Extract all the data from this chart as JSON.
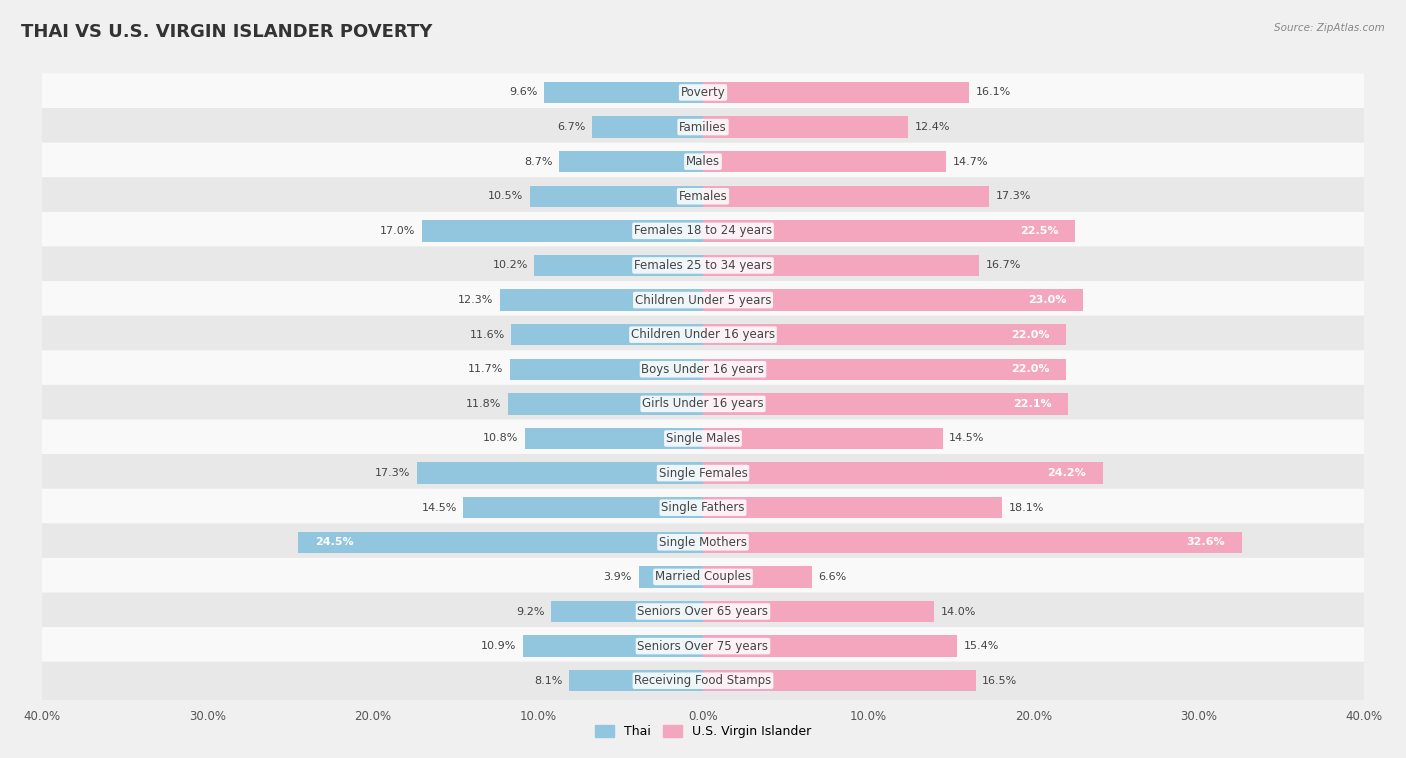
{
  "title": "Thai vs U.S. Virgin Islander Poverty",
  "source": "Source: ZipAtlas.com",
  "categories": [
    "Poverty",
    "Families",
    "Males",
    "Females",
    "Females 18 to 24 years",
    "Females 25 to 34 years",
    "Children Under 5 years",
    "Children Under 16 years",
    "Boys Under 16 years",
    "Girls Under 16 years",
    "Single Males",
    "Single Females",
    "Single Fathers",
    "Single Mothers",
    "Married Couples",
    "Seniors Over 65 years",
    "Seniors Over 75 years",
    "Receiving Food Stamps"
  ],
  "thai_values": [
    9.6,
    6.7,
    8.7,
    10.5,
    17.0,
    10.2,
    12.3,
    11.6,
    11.7,
    11.8,
    10.8,
    17.3,
    14.5,
    24.5,
    3.9,
    9.2,
    10.9,
    8.1
  ],
  "usvi_values": [
    16.1,
    12.4,
    14.7,
    17.3,
    22.5,
    16.7,
    23.0,
    22.0,
    22.0,
    22.1,
    14.5,
    24.2,
    18.1,
    32.6,
    6.6,
    14.0,
    15.4,
    16.5
  ],
  "thai_color": "#92c5de",
  "usvi_color": "#f4a6bf",
  "thai_label": "Thai",
  "usvi_label": "U.S. Virgin Islander",
  "xlim": 40.0,
  "bar_height": 0.62,
  "bg_color": "#f0f0f0",
  "row_color_odd": "#f9f9f9",
  "row_color_even": "#e8e8e8",
  "title_fontsize": 13,
  "label_fontsize": 8.5,
  "value_fontsize": 8,
  "axis_fontsize": 8.5,
  "white_text_threshold": 20.0
}
